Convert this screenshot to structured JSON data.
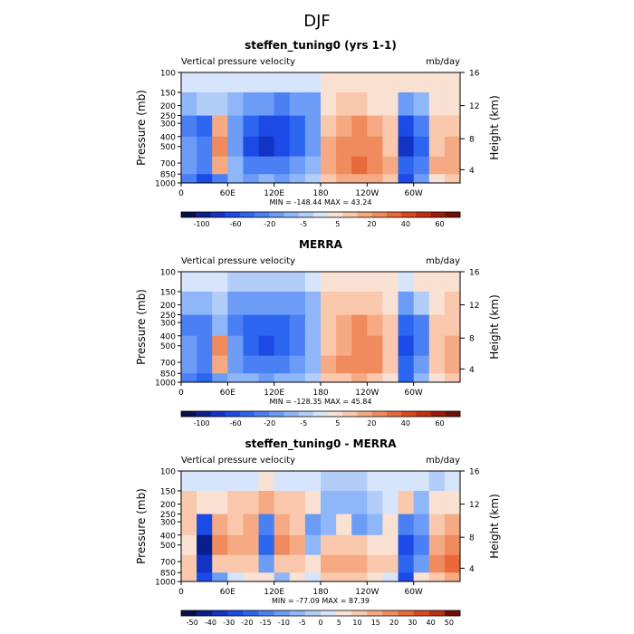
{
  "figure_title": "DJF",
  "chart_data": [
    {
      "type": "heatmap",
      "title": "steffen_tuning0 (yrs 1-1)",
      "subtitle_left": "Vertical pressure velocity",
      "subtitle_right": "mb/day",
      "xlabel": "",
      "ylabel": "Pressure (mb)",
      "y2label": "Height (km)",
      "x_ticks": [
        "0",
        "60E",
        "120E",
        "180",
        "120W",
        "60W"
      ],
      "y_ticks": [
        "100",
        "150",
        "200",
        "250",
        "300",
        "400",
        "500",
        "700",
        "850",
        "1000"
      ],
      "y2_ticks": [
        "16",
        "12",
        "8",
        "4"
      ],
      "stats": "MIN = -148.44   MAX =  43.24",
      "colorbar_labels": [
        "-100",
        "-60",
        "-20",
        "-5",
        "5",
        "20",
        "40",
        "60"
      ],
      "cells": {
        "rows": [
          "100-150",
          "150-250",
          "250-400",
          "400-600",
          "600-850",
          "850-1000"
        ],
        "cols": [
          "0-20",
          "20-40",
          "40-60",
          "60-80",
          "80-100",
          "100-120",
          "120-140",
          "140-160",
          "160-180",
          "180-200",
          "200-220",
          "220-240",
          "240-260",
          "260-280",
          "280-300",
          "300-320",
          "320-340",
          "340-360"
        ],
        "values": [
          [
            -1,
            -1,
            -1,
            -1,
            -1,
            -1,
            -1,
            -1,
            -1,
            1,
            1,
            1,
            2,
            1,
            1,
            2,
            1,
            1
          ],
          [
            -5,
            -3,
            -2,
            -6,
            -14,
            -18,
            -20,
            -18,
            -10,
            2,
            3,
            3,
            2,
            1,
            -10,
            -6,
            1,
            2
          ],
          [
            -20,
            -40,
            6,
            -18,
            -50,
            -70,
            -60,
            -40,
            -15,
            4,
            10,
            12,
            8,
            3,
            -60,
            -30,
            3,
            5
          ],
          [
            -15,
            -30,
            15,
            -10,
            -60,
            -80,
            -70,
            -45,
            -10,
            6,
            15,
            20,
            12,
            5,
            -80,
            -40,
            4,
            8
          ],
          [
            -10,
            -20,
            10,
            -8,
            -25,
            -30,
            -20,
            -15,
            -5,
            8,
            20,
            25,
            18,
            6,
            -40,
            -20,
            6,
            10
          ],
          [
            -30,
            -60,
            -20,
            -5,
            -10,
            -8,
            -10,
            -5,
            -2,
            5,
            8,
            10,
            6,
            3,
            -60,
            -10,
            2,
            3
          ]
        ]
      }
    },
    {
      "type": "heatmap",
      "title": "MERRA",
      "subtitle_left": "Vertical pressure velocity",
      "subtitle_right": "mb/day",
      "xlabel": "",
      "ylabel": "Pressure (mb)",
      "y2label": "Height (km)",
      "x_ticks": [
        "0",
        "60E",
        "120E",
        "180",
        "120W",
        "60W"
      ],
      "y_ticks": [
        "100",
        "150",
        "200",
        "250",
        "300",
        "400",
        "500",
        "700",
        "850",
        "1000"
      ],
      "y2_ticks": [
        "16",
        "12",
        "8",
        "4"
      ],
      "stats": "MIN = -128.35   MAX =  45.84",
      "colorbar_labels": [
        "-100",
        "-60",
        "-20",
        "-5",
        "5",
        "20",
        "40",
        "60"
      ],
      "cells": {
        "rows": [
          "100-150",
          "150-250",
          "250-400",
          "400-600",
          "600-850",
          "850-1000"
        ],
        "cols": [
          "0-20",
          "20-40",
          "40-60",
          "60-80",
          "80-100",
          "100-120",
          "120-140",
          "140-160",
          "160-180",
          "180-200",
          "200-220",
          "220-240",
          "240-260",
          "260-280",
          "280-300",
          "300-320",
          "320-340",
          "340-360"
        ],
        "values": [
          [
            -1,
            -1,
            -1,
            -2,
            -3,
            -3,
            -3,
            -2,
            -1,
            1,
            1,
            2,
            2,
            1,
            -1,
            1,
            1,
            1
          ],
          [
            -8,
            -5,
            -4,
            -10,
            -15,
            -18,
            -16,
            -12,
            -6,
            3,
            4,
            5,
            3,
            1,
            -12,
            -4,
            2,
            3
          ],
          [
            -20,
            -25,
            -5,
            -20,
            -40,
            -55,
            -45,
            -25,
            -8,
            4,
            8,
            15,
            10,
            3,
            -50,
            -20,
            3,
            4
          ],
          [
            -10,
            -20,
            15,
            -15,
            -45,
            -60,
            -50,
            -30,
            -8,
            5,
            10,
            20,
            15,
            4,
            -60,
            -25,
            4,
            6
          ],
          [
            -15,
            -25,
            8,
            -10,
            -25,
            -30,
            -25,
            -15,
            -5,
            6,
            12,
            18,
            12,
            5,
            -40,
            -15,
            5,
            8
          ],
          [
            -35,
            -50,
            -15,
            -5,
            -8,
            -10,
            -8,
            -5,
            -3,
            3,
            5,
            8,
            5,
            2,
            -45,
            -8,
            2,
            3
          ]
        ]
      }
    },
    {
      "type": "heatmap",
      "title": "steffen_tuning0 - MERRA",
      "subtitle_left": "Vertical pressure velocity",
      "subtitle_right": "mb/day",
      "xlabel": "",
      "ylabel": "Pressure (mb)",
      "y2label": "Height (km)",
      "x_ticks": [
        "0",
        "60E",
        "120E",
        "180",
        "120W",
        "60W"
      ],
      "y_ticks": [
        "100",
        "150",
        "200",
        "250",
        "300",
        "400",
        "500",
        "700",
        "850",
        "1000"
      ],
      "y2_ticks": [
        "16",
        "12",
        "8",
        "4"
      ],
      "stats": "MIN = -77.09   MAX =  87.39",
      "colorbar_labels": [
        "-50",
        "-40",
        "-30",
        "-20",
        "-15",
        "-10",
        "-5",
        "0",
        "5",
        "10",
        "15",
        "20",
        "30",
        "40",
        "50"
      ],
      "cells": {
        "rows": [
          "100-150",
          "150-250",
          "250-400",
          "400-600",
          "600-850",
          "850-1000"
        ],
        "cols": [
          "0-20",
          "20-40",
          "40-60",
          "60-80",
          "80-100",
          "100-120",
          "120-140",
          "140-160",
          "160-180",
          "180-200",
          "200-220",
          "220-240",
          "240-260",
          "260-280",
          "280-300",
          "300-320",
          "320-340",
          "340-360"
        ],
        "values": [
          [
            1,
            2,
            1,
            1,
            2,
            3,
            2,
            1,
            1,
            -1,
            -1,
            -1,
            1,
            1,
            1,
            1,
            -1,
            1
          ],
          [
            6,
            4,
            5,
            8,
            10,
            12,
            10,
            6,
            3,
            -3,
            -2,
            -3,
            -1,
            2,
            6,
            -4,
            3,
            4
          ],
          [
            8,
            -20,
            15,
            10,
            12,
            -10,
            15,
            10,
            -5,
            -4,
            3,
            -5,
            -2,
            3,
            -10,
            -8,
            10,
            12
          ],
          [
            5,
            -40,
            20,
            12,
            15,
            -15,
            20,
            12,
            -3,
            8,
            10,
            6,
            5,
            4,
            -20,
            -10,
            15,
            20
          ],
          [
            6,
            -30,
            10,
            10,
            8,
            -5,
            10,
            8,
            5,
            12,
            15,
            12,
            10,
            6,
            -15,
            -5,
            18,
            25
          ],
          [
            8,
            -20,
            -5,
            2,
            3,
            4,
            -2,
            3,
            2,
            10,
            8,
            6,
            4,
            2,
            -25,
            5,
            10,
            12
          ]
        ]
      }
    }
  ],
  "palettes": {
    "full": [
      "#08104a",
      "#0a1f8c",
      "#1233c4",
      "#1c4ae6",
      "#2c66f0",
      "#4a80f4",
      "#6c9cf6",
      "#8fb6f8",
      "#b3cdf9",
      "#d6e5fb",
      "#f9e1d3",
      "#f9c8ad",
      "#f6aa84",
      "#f08b5d",
      "#e86a3a",
      "#d84a1e",
      "#bf2f12",
      "#9c1a08",
      "#701004"
    ],
    "boundaries_full": [
      -120,
      -100,
      -80,
      -60,
      -40,
      -20,
      -10,
      -5,
      -2,
      0,
      2,
      5,
      10,
      20,
      30,
      40,
      50,
      60
    ],
    "diff": [
      "#08104a",
      "#0a1f8c",
      "#1233c4",
      "#1c4ae6",
      "#2c66f0",
      "#4a80f4",
      "#6c9cf6",
      "#8fb6f8",
      "#b3cdf9",
      "#d6e5fb",
      "#f9e1d3",
      "#f9c8ad",
      "#f6aa84",
      "#f08b5d",
      "#e86a3a",
      "#d84a1e",
      "#bf2f12",
      "#701004"
    ],
    "boundaries_diff": [
      -50,
      -40,
      -30,
      -20,
      -15,
      -10,
      -5,
      -2,
      0,
      2,
      5,
      10,
      15,
      20,
      30,
      40,
      50
    ]
  }
}
